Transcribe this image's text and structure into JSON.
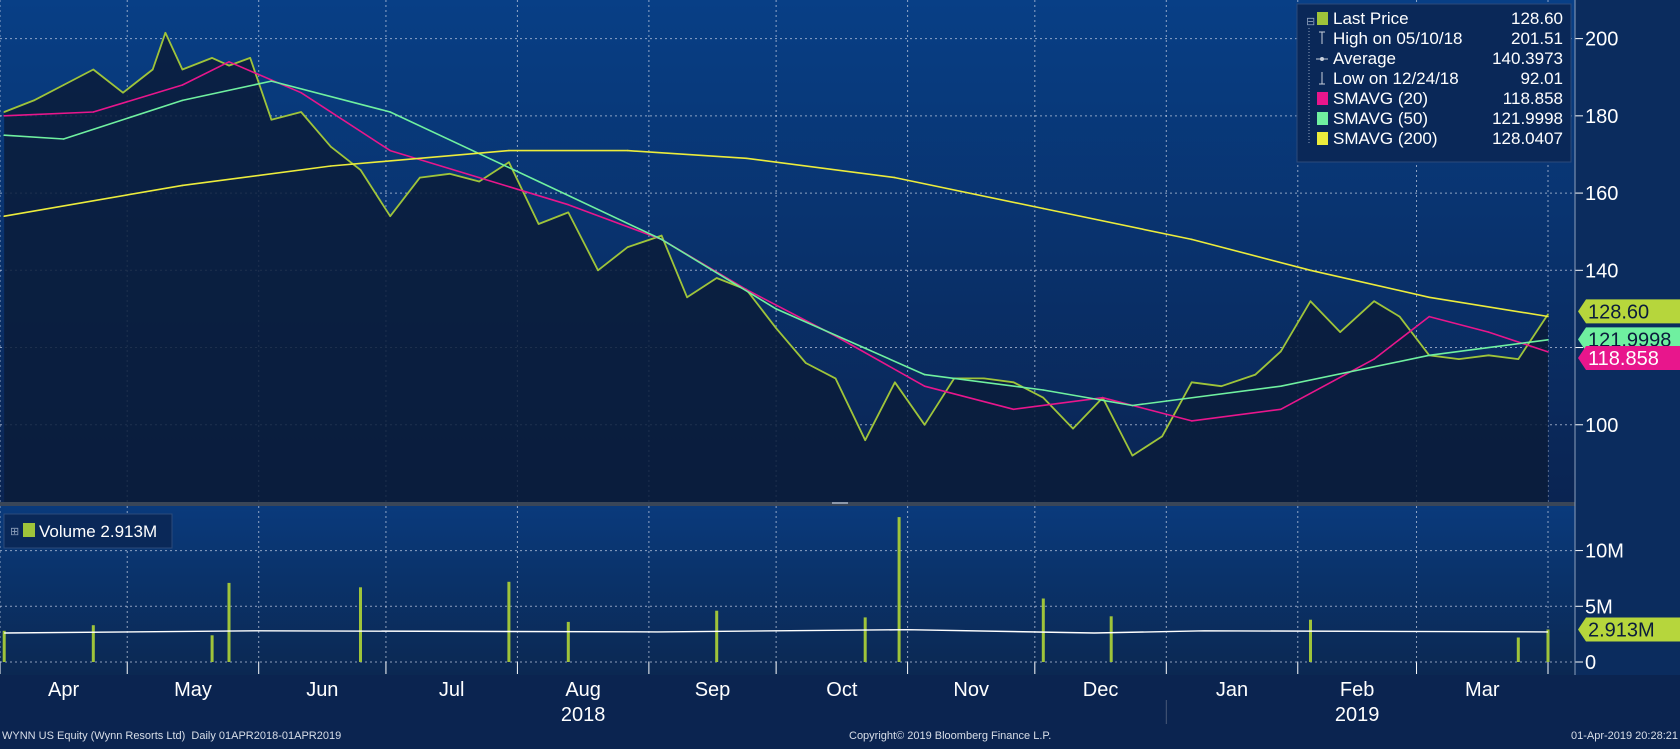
{
  "price_legend": {
    "items": [
      {
        "label": "Last Price",
        "value": "128.60",
        "color": "#9fc43a",
        "marker": "square-icon"
      },
      {
        "label": "High on 05/10/18",
        "value": "201.51",
        "color": "#c8d0dc",
        "marker": "high-marker-icon"
      },
      {
        "label": "Average",
        "value": "140.3973",
        "color": "#c8d0dc",
        "marker": "average-marker-icon"
      },
      {
        "label": "Low on 12/24/18",
        "value": "92.01",
        "color": "#c8d0dc",
        "marker": "low-marker-icon"
      },
      {
        "label": "SMAVG (20)",
        "value": "118.858",
        "color": "#e8168c",
        "marker": "square-icon"
      },
      {
        "label": "SMAVG (50)",
        "value": "121.9998",
        "color": "#6ff0a0",
        "marker": "square-icon"
      },
      {
        "label": "SMAVG (200)",
        "value": "128.0407",
        "color": "#ecec3c",
        "marker": "square-icon"
      }
    ]
  },
  "price_tags": [
    {
      "text": "128.60",
      "value": 128.6,
      "bg": "#b6d63c",
      "fg": "#0b1c3c"
    },
    {
      "text": "121.9998",
      "value": 121.9998,
      "bg": "#6ff0a0",
      "fg": "#0b1c3c"
    },
    {
      "text": "118.858",
      "value": 118.858,
      "bg": "#e8168c",
      "fg": "#ffffff"
    }
  ],
  "volume_legend": {
    "label": "Volume 2.913M",
    "color": "#9fc43a"
  },
  "volume_tag": {
    "text": "2.913M",
    "value": 2.913,
    "bg": "#b6d63c",
    "fg": "#0b1c3c"
  },
  "x_axis": {
    "months": [
      "Apr",
      "May",
      "Jun",
      "Jul",
      "Aug",
      "Sep",
      "Oct",
      "Nov",
      "Dec",
      "Jan",
      "Feb",
      "Mar"
    ],
    "years": [
      "2018",
      "2019"
    ]
  },
  "footer": {
    "left": "WYNN US Equity (Wynn Resorts Ltd)  Daily 01APR2018-01APR2019",
    "center": "Copyright© 2019 Bloomberg Finance L.P.",
    "right": "01-Apr-2019 20:28:21"
  },
  "colors": {
    "background": "#0b2450",
    "area_fill": "#0a1c3a",
    "grid": "#c8d2e6",
    "axis_text": "#ffffff",
    "last_price": "#9fc43a",
    "sma20": "#e8168c",
    "sma50": "#6ff0a0",
    "sma200": "#ecec3c",
    "volume_bar": "#9fc43a",
    "volume_avg": "#ffffff"
  },
  "chart_data": [
    {
      "type": "line",
      "title": "",
      "ylim": [
        80,
        210
      ],
      "yticks": [
        100,
        120,
        140,
        160,
        180,
        200
      ],
      "date_range": [
        "2018-04-01",
        "2019-04-01"
      ],
      "series": [
        {
          "name": "Last Price",
          "x": [
            "2018-04-02",
            "2018-04-09",
            "2018-04-16",
            "2018-04-23",
            "2018-04-30",
            "2018-05-07",
            "2018-05-10",
            "2018-05-14",
            "2018-05-21",
            "2018-05-25",
            "2018-05-30",
            "2018-06-04",
            "2018-06-11",
            "2018-06-18",
            "2018-06-25",
            "2018-07-02",
            "2018-07-09",
            "2018-07-16",
            "2018-07-23",
            "2018-07-30",
            "2018-08-06",
            "2018-08-13",
            "2018-08-20",
            "2018-08-27",
            "2018-09-04",
            "2018-09-10",
            "2018-09-17",
            "2018-09-24",
            "2018-10-01",
            "2018-10-08",
            "2018-10-15",
            "2018-10-22",
            "2018-10-29",
            "2018-11-05",
            "2018-11-12",
            "2018-11-19",
            "2018-11-26",
            "2018-12-03",
            "2018-12-10",
            "2018-12-17",
            "2018-12-24",
            "2018-12-31",
            "2019-01-07",
            "2019-01-14",
            "2019-01-22",
            "2019-01-28",
            "2019-02-04",
            "2019-02-11",
            "2019-02-19",
            "2019-02-25",
            "2019-03-04",
            "2019-03-11",
            "2019-03-18",
            "2019-03-25",
            "2019-04-01"
          ],
          "y": [
            181,
            184,
            188,
            192,
            186,
            192,
            201.51,
            192,
            195,
            193,
            195,
            179,
            181,
            172,
            166,
            154,
            164,
            165,
            163,
            168,
            152,
            155,
            140,
            146,
            149,
            133,
            138,
            135,
            125,
            116,
            112,
            96,
            111,
            100,
            112,
            112,
            111,
            107,
            99,
            107,
            92.01,
            97,
            111,
            110,
            113,
            119,
            132,
            124,
            132,
            128,
            118,
            117,
            118,
            117,
            128.6
          ]
        },
        {
          "name": "SMAVG (20)",
          "x": [
            "2018-04-02",
            "2018-04-23",
            "2018-05-14",
            "2018-05-25",
            "2018-06-11",
            "2018-07-02",
            "2018-07-23",
            "2018-08-13",
            "2018-09-04",
            "2018-09-24",
            "2018-10-15",
            "2018-11-05",
            "2018-11-26",
            "2018-12-17",
            "2019-01-07",
            "2019-01-28",
            "2019-02-19",
            "2019-03-04",
            "2019-03-18",
            "2019-04-01"
          ],
          "y": [
            180,
            181,
            188,
            194,
            186,
            171,
            164,
            157,
            148,
            135,
            123,
            110,
            104,
            107,
            101,
            104,
            117,
            128,
            124,
            118.858
          ]
        },
        {
          "name": "SMAVG (50)",
          "x": [
            "2018-04-02",
            "2018-04-16",
            "2018-05-14",
            "2018-06-04",
            "2018-07-02",
            "2018-08-06",
            "2018-09-04",
            "2018-10-01",
            "2018-11-05",
            "2018-12-03",
            "2018-12-24",
            "2019-01-28",
            "2019-03-04",
            "2019-04-01"
          ],
          "y": [
            175,
            174,
            184,
            189,
            181,
            163,
            148,
            130,
            113,
            109,
            105,
            110,
            118,
            121.9998
          ]
        },
        {
          "name": "SMAVG (200)",
          "x": [
            "2018-04-02",
            "2018-05-14",
            "2018-06-18",
            "2018-07-30",
            "2018-08-27",
            "2018-09-24",
            "2018-10-29",
            "2018-12-03",
            "2019-01-07",
            "2019-02-04",
            "2019-03-04",
            "2019-04-01"
          ],
          "y": [
            154,
            162,
            167,
            171,
            171,
            169,
            164,
            156,
            148,
            140,
            133,
            128.0407
          ]
        }
      ]
    },
    {
      "type": "bar",
      "title": "",
      "ylim": [
        0,
        14
      ],
      "yticks": [
        0,
        5,
        10
      ],
      "ytick_labels": [
        "0",
        "5M",
        "10M"
      ],
      "unit": "M",
      "series": [
        {
          "name": "Volume",
          "x": [
            "2018-04-02",
            "2018-04-23",
            "2018-05-21",
            "2018-05-25",
            "2018-06-25",
            "2018-07-30",
            "2018-08-13",
            "2018-09-17",
            "2018-10-22",
            "2018-10-30",
            "2018-12-03",
            "2018-12-19",
            "2019-02-04",
            "2019-03-25",
            "2019-04-01"
          ],
          "y": [
            2.8,
            3.3,
            2.4,
            7.1,
            6.7,
            7.2,
            3.6,
            4.6,
            4.0,
            13.0,
            5.7,
            4.1,
            3.8,
            2.2,
            2.913
          ]
        },
        {
          "name": "Volume average",
          "x": [
            "2018-04-02",
            "2018-06-01",
            "2018-09-03",
            "2018-11-01",
            "2018-12-15",
            "2019-01-10",
            "2019-04-01"
          ],
          "y": [
            2.6,
            2.8,
            2.7,
            2.9,
            2.6,
            2.8,
            2.7
          ]
        }
      ]
    }
  ]
}
